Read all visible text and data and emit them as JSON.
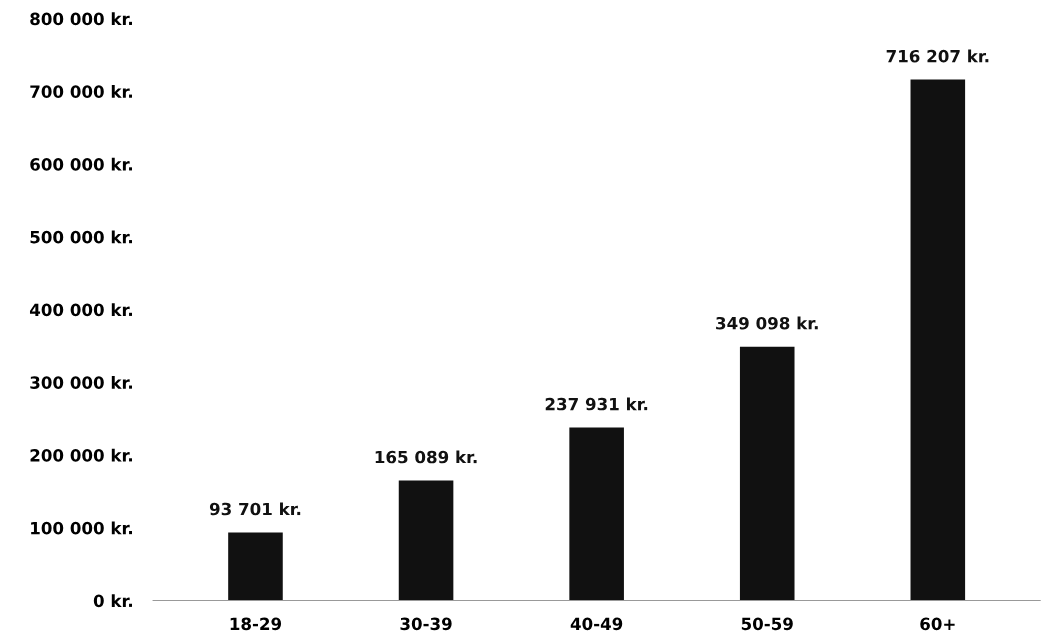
{
  "chart_data": {
    "type": "bar",
    "categories": [
      "18-29",
      "30-39",
      "40-49",
      "50-59",
      "60+"
    ],
    "values": [
      93701,
      165089,
      237931,
      349098,
      716207
    ],
    "value_labels": [
      "93 701 kr.",
      "165 089 kr.",
      "237 931 kr.",
      "349 098 kr.",
      "716 207 kr."
    ],
    "color": "#111111",
    "ylim": [
      0,
      800000
    ],
    "yticks": [
      {
        "value": 0,
        "label": "0 kr."
      },
      {
        "value": 100000,
        "label": "100 000 kr."
      },
      {
        "value": 200000,
        "label": "200 000 kr."
      },
      {
        "value": 300000,
        "label": "300 000 kr."
      },
      {
        "value": 400000,
        "label": "400 000 kr."
      },
      {
        "value": 500000,
        "label": "500 000 kr."
      },
      {
        "value": 600000,
        "label": "600 000 kr."
      },
      {
        "value": 700000,
        "label": "700 000 kr."
      },
      {
        "value": 800000,
        "label": "800 000 kr."
      }
    ],
    "grid": false,
    "legend": false
  }
}
